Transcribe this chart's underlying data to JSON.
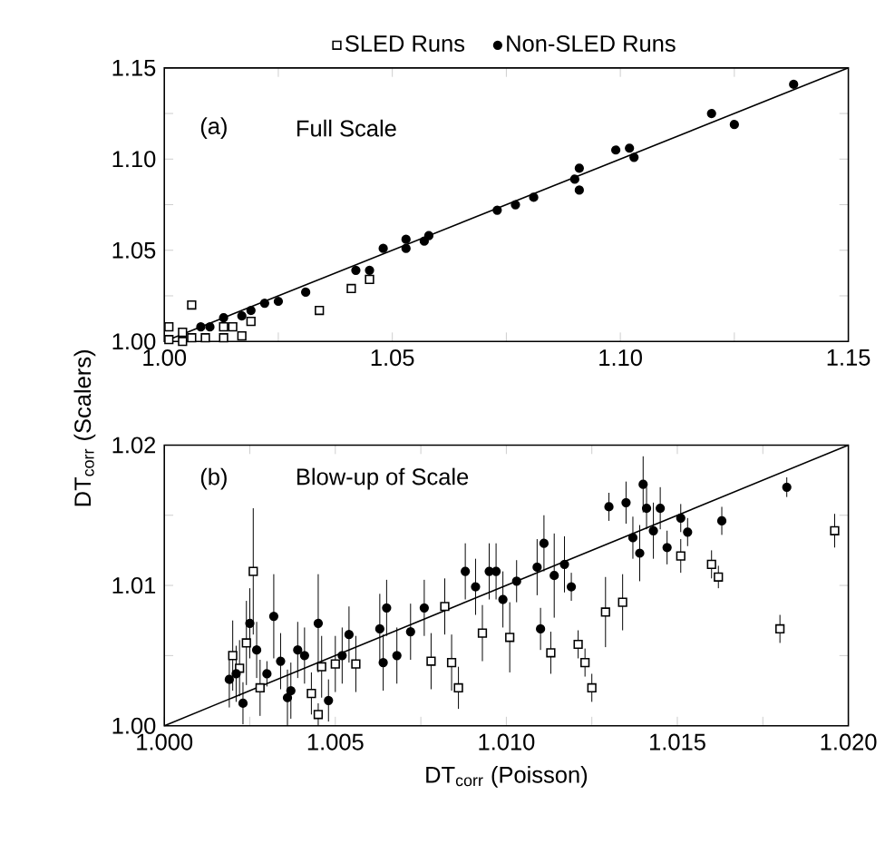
{
  "chart_data": [
    {
      "type": "scatter",
      "legend": "top",
      "annotations": [
        "(a)",
        "Full Scale"
      ],
      "xlim": [
        1.0,
        1.15
      ],
      "ylim": [
        1.0,
        1.15
      ],
      "xticks": [
        {
          "value": 1.0,
          "label": "1.00"
        },
        {
          "value": 1.025,
          "label": null
        },
        {
          "value": 1.05,
          "label": "1.05"
        },
        {
          "value": 1.075,
          "label": null
        },
        {
          "value": 1.1,
          "label": "1.10"
        },
        {
          "value": 1.125,
          "label": null
        },
        {
          "value": 1.15,
          "label": "1.15"
        }
      ],
      "yticks": [
        {
          "value": 1.0,
          "label": "1.00"
        },
        {
          "value": 1.025,
          "label": null
        },
        {
          "value": 1.05,
          "label": "1.05"
        },
        {
          "value": 1.075,
          "label": null
        },
        {
          "value": 1.1,
          "label": "1.10"
        },
        {
          "value": 1.125,
          "label": null
        },
        {
          "value": 1.15,
          "label": "1.15"
        }
      ],
      "series": [
        {
          "name": "SLED Runs",
          "color": "#000000",
          "marker": "square",
          "x": [
            1.006,
            1.001,
            1.004,
            1.004,
            1.001,
            1.006,
            1.009,
            1.013,
            1.013,
            1.015,
            1.017,
            1.019,
            1.034,
            1.041,
            1.045
          ],
          "values": [
            1.02,
            1.008,
            1.005,
            1.0,
            1.001,
            1.002,
            1.002,
            1.002,
            1.008,
            1.008,
            1.003,
            1.011,
            1.017,
            1.029,
            1.034
          ]
        },
        {
          "name": "Non-SLED Runs",
          "color": "#000000",
          "marker": "circle",
          "x": [
            1.138,
            1.12,
            1.125,
            1.099,
            1.102,
            1.103,
            1.09,
            1.091,
            1.091,
            1.081,
            1.077,
            1.073,
            1.058,
            1.053,
            1.053,
            1.057,
            1.048,
            1.045,
            1.042,
            1.031,
            1.025,
            1.022,
            1.019,
            1.017,
            1.013,
            1.01,
            1.008
          ],
          "values": [
            1.141,
            1.125,
            1.119,
            1.105,
            1.106,
            1.101,
            1.089,
            1.095,
            1.083,
            1.079,
            1.075,
            1.072,
            1.058,
            1.056,
            1.051,
            1.055,
            1.051,
            1.039,
            1.039,
            1.027,
            1.022,
            1.021,
            1.017,
            1.014,
            1.013,
            1.008,
            1.008
          ]
        },
        {
          "type": "line",
          "color": "#000000",
          "marker": "none",
          "x": [
            1.0,
            1.15
          ],
          "values": [
            1.0,
            1.15
          ]
        }
      ]
    },
    {
      "type": "scatter",
      "annotations": [
        "(b)",
        "Blow-up of Scale"
      ],
      "xlabel": "DT$_{corr}$ (Poisson)",
      "ylabel": "DT$_{corr}$ (Scalers)",
      "xlim": [
        1.0,
        1.02
      ],
      "ylim": [
        1.0,
        1.02
      ],
      "xticks": [
        {
          "value": 1.0,
          "label": "1.000"
        },
        {
          "value": 1.0025,
          "label": null
        },
        {
          "value": 1.005,
          "label": "1.005"
        },
        {
          "value": 1.0075,
          "label": null
        },
        {
          "value": 1.01,
          "label": "1.010"
        },
        {
          "value": 1.0125,
          "label": null
        },
        {
          "value": 1.015,
          "label": "1.015"
        },
        {
          "value": 1.0175,
          "label": null
        },
        {
          "value": 1.02,
          "label": "1.020"
        }
      ],
      "yticks": [
        {
          "value": 1.0,
          "label": "1.00"
        },
        {
          "value": 1.005,
          "label": null
        },
        {
          "value": 1.01,
          "label": "1.01"
        },
        {
          "value": 1.015,
          "label": null
        },
        {
          "value": 1.02,
          "label": "1.02"
        }
      ],
      "series": [
        {
          "color": "#000000",
          "marker": "square",
          "x": [
            1.0026,
            1.002,
            1.0022,
            1.0024,
            1.0028,
            1.0043,
            1.0045,
            1.0046,
            1.005,
            1.0056,
            1.0078,
            1.0082,
            1.0084,
            1.0086,
            1.0093,
            1.0101,
            1.0113,
            1.0121,
            1.0123,
            1.0125,
            1.0129,
            1.0134,
            1.0151,
            1.016,
            1.0162,
            1.018,
            1.0196
          ],
          "values": [
            1.011,
            1.005,
            1.0041,
            1.0059,
            1.0027,
            1.0023,
            1.0008,
            1.0042,
            1.0044,
            1.0044,
            1.0046,
            1.0085,
            1.0045,
            1.0027,
            1.0066,
            1.0063,
            1.0052,
            1.0058,
            1.0045,
            1.0027,
            1.0081,
            1.0088,
            1.0121,
            1.0115,
            1.0106,
            1.0069,
            1.0139
          ],
          "errors": [
            0.0045,
            0.0025,
            0.002,
            0.003,
            0.002,
            0.0015,
            0.0008,
            0.0022,
            0.002,
            0.002,
            0.002,
            0.002,
            0.002,
            0.0015,
            0.002,
            0.0025,
            0.0015,
            0.001,
            0.001,
            0.001,
            0.0025,
            0.002,
            0.0012,
            0.001,
            0.0008,
            0.001,
            0.0012
          ]
        },
        {
          "color": "#000000",
          "marker": "circle",
          "x": [
            1.0032,
            1.0019,
            1.0023,
            1.0025,
            1.0034,
            1.0037,
            1.003,
            1.0041,
            1.0045,
            1.0048,
            1.0054,
            1.0052,
            1.0063,
            1.0065,
            1.0068,
            1.0064,
            1.0072,
            1.0076,
            1.0088,
            1.0095,
            1.0097,
            1.0099,
            1.0091,
            1.0103,
            1.0027,
            1.0021,
            1.0039,
            1.0036,
            1.0109,
            1.0111,
            1.0114,
            1.0117,
            1.0119,
            1.011,
            1.013,
            1.0135,
            1.014,
            1.0141,
            1.0145,
            1.0137,
            1.0139,
            1.0143,
            1.0147,
            1.0151,
            1.0153,
            1.0163,
            1.0182
          ],
          "values": [
            1.0078,
            1.0033,
            1.0016,
            1.0073,
            1.0046,
            1.0025,
            1.0037,
            1.005,
            1.0073,
            1.0018,
            1.0065,
            1.005,
            1.0069,
            1.0084,
            1.005,
            1.0045,
            1.0067,
            1.0084,
            1.011,
            1.011,
            1.011,
            1.009,
            1.0099,
            1.0103,
            1.0054,
            1.0037,
            1.0054,
            1.002,
            1.0113,
            1.013,
            1.0107,
            1.0115,
            1.0099,
            1.0069,
            1.0156,
            1.0159,
            1.0172,
            1.0155,
            1.0155,
            1.0134,
            1.0123,
            1.0139,
            1.0127,
            1.0148,
            1.0138,
            1.0146,
            1.017
          ],
          "errors": [
            0.003,
            0.002,
            0.0015,
            0.0025,
            0.002,
            0.002,
            0.0009,
            0.002,
            0.0035,
            0.0015,
            0.002,
            0.002,
            0.0025,
            0.002,
            0.002,
            0.002,
            0.002,
            0.002,
            0.002,
            0.002,
            0.002,
            0.002,
            0.002,
            0.0015,
            0.002,
            0.002,
            0.002,
            0.002,
            0.002,
            0.002,
            0.003,
            0.002,
            0.001,
            0.0015,
            0.001,
            0.0015,
            0.002,
            0.0015,
            0.0015,
            0.0015,
            0.002,
            0.002,
            0.0012,
            0.001,
            0.001,
            0.001,
            0.0007
          ]
        },
        {
          "type": "line",
          "color": "#000000",
          "marker": "none",
          "x": [
            1.0,
            1.02
          ],
          "values": [
            1.0,
            1.02
          ]
        }
      ]
    }
  ]
}
